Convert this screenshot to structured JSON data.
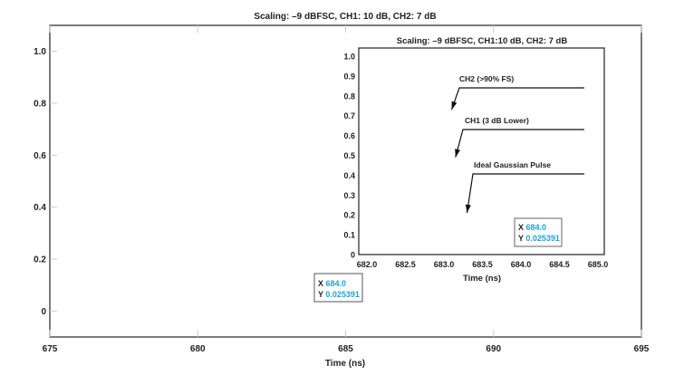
{
  "chart_data": [
    {
      "type": "line",
      "title": "Scaling: –9 dBFSC, CH1: 10 dB, CH2: 7 dB",
      "xlabel": "Time (ns)",
      "ylabel": "",
      "xlim": [
        675,
        695
      ],
      "ylim": [
        -0.1,
        1.1
      ],
      "xticks": [
        "675",
        "680",
        "685",
        "690",
        "695"
      ],
      "yticks": [
        "0",
        "0.2",
        "0.4",
        "0.6",
        "0.8",
        "1.0"
      ],
      "grid": false,
      "series": [],
      "cursor": {
        "x_label": "X",
        "x_value": "684.0",
        "y_label": "Y",
        "y_value": "0.025391"
      }
    },
    {
      "type": "line",
      "title": "Scaling: –9 dBFSC, CH1:10 dB, CH2: 7 dB",
      "xlabel": "Time (ns)",
      "ylabel": "",
      "xlim": [
        682.0,
        685.0
      ],
      "ylim": [
        0,
        1.0
      ],
      "xticks": [
        "682.0",
        "682.5",
        "683.0",
        "683.5",
        "684.0",
        "684.5",
        "685.0"
      ],
      "yticks": [
        "0",
        "0.1",
        "0.2",
        "0.3",
        "0.4",
        "0.5",
        "0.6",
        "0.7",
        "0.8",
        "0.9",
        "1.0"
      ],
      "grid": false,
      "series": [],
      "annotations": [
        {
          "text": "CH2 (>90% FS)",
          "points_to": [
            683.1,
            0.73
          ]
        },
        {
          "text": "CH1 (3 dB Lower)",
          "points_to": [
            683.15,
            0.49
          ]
        },
        {
          "text": "Ideal Gaussian Pulse",
          "points_to": [
            683.3,
            0.21
          ]
        }
      ],
      "cursor": {
        "x_label": "X",
        "x_value": "684.0",
        "y_label": "Y",
        "y_value": "0.025391"
      }
    }
  ],
  "colors": {
    "axis": "#333333",
    "cursor_value": "#1ba6e0",
    "tick": "#cccccc"
  }
}
